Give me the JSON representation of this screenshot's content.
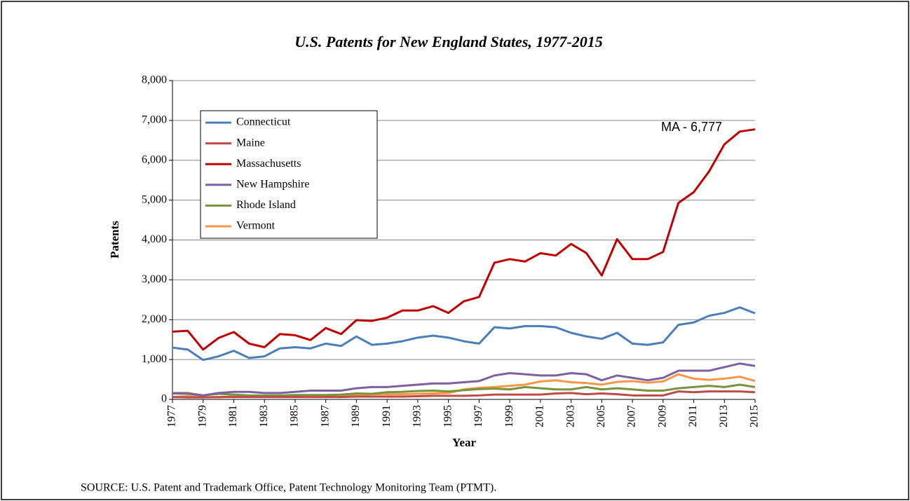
{
  "chart_data": {
    "type": "line",
    "title": "U.S. Patents for New England States, 1977-2015",
    "x_label": "Year",
    "y_label": "Patents",
    "annotation": "MA - 6,777",
    "source": "SOURCE: U.S. Patent and Trademark Office, Patent Technology Monitoring Team (PTMT).",
    "x": [
      1977,
      1978,
      1979,
      1980,
      1981,
      1982,
      1983,
      1984,
      1985,
      1986,
      1987,
      1988,
      1989,
      1990,
      1991,
      1992,
      1993,
      1994,
      1995,
      1996,
      1997,
      1998,
      1999,
      2000,
      2001,
      2002,
      2003,
      2004,
      2005,
      2006,
      2007,
      2008,
      2009,
      2010,
      2011,
      2012,
      2013,
      2014,
      2015
    ],
    "xlim": [
      1977,
      2015
    ],
    "xticks": [
      1977,
      1979,
      1981,
      1983,
      1985,
      1987,
      1989,
      1991,
      1993,
      1995,
      1997,
      1999,
      2001,
      2003,
      2005,
      2007,
      2009,
      2011,
      2013,
      2015
    ],
    "ylim": [
      0,
      8000
    ],
    "yticks": [
      0,
      {
        "value": 1000,
        "label": "1,000"
      },
      {
        "value": 2000,
        "label": "2,000"
      },
      {
        "value": 3000,
        "label": "3,000"
      },
      {
        "value": 4000,
        "label": "4,000"
      },
      {
        "value": 5000,
        "label": "5,000"
      },
      {
        "value": 6000,
        "label": "6,000"
      },
      {
        "value": 7000,
        "label": "7,000"
      },
      {
        "value": 8000,
        "label": "8,000"
      }
    ],
    "grid": true,
    "legend": "upper left",
    "series": [
      {
        "name": "Connecticut",
        "color": "#4a7ebb",
        "values": [
          1300,
          1250,
          990,
          1080,
          1220,
          1040,
          1080,
          1280,
          1310,
          1280,
          1400,
          1340,
          1580,
          1370,
          1400,
          1460,
          1550,
          1600,
          1550,
          1460,
          1400,
          1810,
          1780,
          1840,
          1840,
          1810,
          1670,
          1580,
          1520,
          1670,
          1400,
          1370,
          1430,
          1870,
          1930,
          2100,
          2170,
          2310,
          2160
        ]
      },
      {
        "name": "Maine",
        "color": "#be4b48",
        "values": [
          60,
          50,
          50,
          60,
          60,
          60,
          60,
          60,
          60,
          60,
          60,
          60,
          70,
          70,
          70,
          70,
          80,
          90,
          90,
          90,
          100,
          120,
          120,
          120,
          120,
          150,
          160,
          130,
          150,
          130,
          100,
          100,
          100,
          200,
          180,
          200,
          200,
          200,
          180
        ]
      },
      {
        "name": "Massachusetts",
        "color": "#c00000",
        "values": [
          1700,
          1720,
          1250,
          1540,
          1690,
          1400,
          1310,
          1640,
          1610,
          1490,
          1790,
          1640,
          1990,
          1970,
          2050,
          2230,
          2230,
          2340,
          2170,
          2460,
          2570,
          3430,
          3520,
          3460,
          3670,
          3610,
          3900,
          3670,
          3110,
          4020,
          3520,
          3520,
          3700,
          4930,
          5200,
          5720,
          6400,
          6720,
          6777
        ]
      },
      {
        "name": "New Hampshire",
        "color": "#7d60a0",
        "values": [
          150,
          140,
          100,
          160,
          190,
          190,
          160,
          160,
          190,
          220,
          220,
          220,
          280,
          310,
          310,
          340,
          370,
          400,
          400,
          430,
          460,
          600,
          660,
          630,
          600,
          600,
          660,
          630,
          480,
          600,
          540,
          480,
          540,
          720,
          720,
          720,
          810,
          900,
          840
        ]
      },
      {
        "name": "Rhode Island",
        "color": "#77933c",
        "values": [
          160,
          160,
          100,
          140,
          120,
          100,
          100,
          100,
          110,
          110,
          110,
          120,
          150,
          140,
          180,
          190,
          210,
          220,
          200,
          230,
          260,
          270,
          250,
          310,
          280,
          250,
          250,
          310,
          250,
          280,
          250,
          220,
          220,
          280,
          310,
          340,
          310,
          370,
          310
        ]
      },
      {
        "name": "Vermont",
        "color": "#f79646",
        "values": [
          60,
          80,
          60,
          50,
          80,
          80,
          90,
          100,
          90,
          80,
          80,
          90,
          110,
          130,
          130,
          130,
          140,
          150,
          160,
          250,
          290,
          310,
          340,
          370,
          450,
          480,
          430,
          410,
          370,
          440,
          460,
          420,
          450,
          630,
          520,
          490,
          520,
          570,
          460
        ]
      }
    ]
  }
}
